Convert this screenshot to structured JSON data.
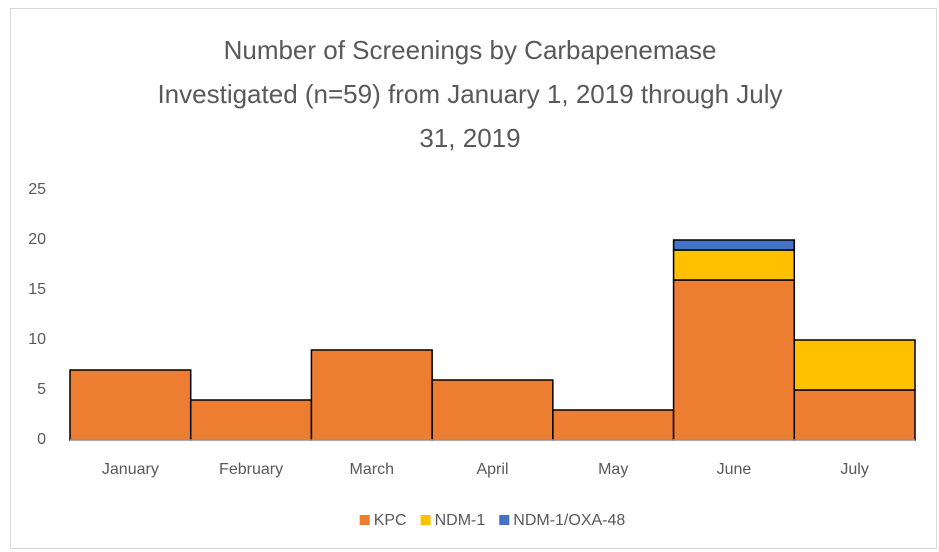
{
  "chart_data": {
    "type": "stacked_bar",
    "title": "Number of Screenings by Carbapenemase Investigated (n=59) from January 1, 2019 through July 31, 2019",
    "categories": [
      "January",
      "February",
      "March",
      "April",
      "May",
      "June",
      "July"
    ],
    "series": [
      {
        "name": "KPC",
        "color": "#ed7d31",
        "values": [
          7,
          4,
          9,
          6,
          3,
          16,
          5
        ]
      },
      {
        "name": "NDM-1",
        "color": "#ffc000",
        "values": [
          0,
          0,
          0,
          0,
          0,
          3,
          5
        ]
      },
      {
        "name": "NDM-1/OXA-48",
        "color": "#4472c4",
        "values": [
          0,
          0,
          0,
          0,
          0,
          1,
          0
        ]
      }
    ],
    "ylim": [
      0,
      25
    ],
    "yticks": [
      0,
      5,
      10,
      15,
      20,
      25
    ],
    "grid": false,
    "legend": "bottom"
  }
}
